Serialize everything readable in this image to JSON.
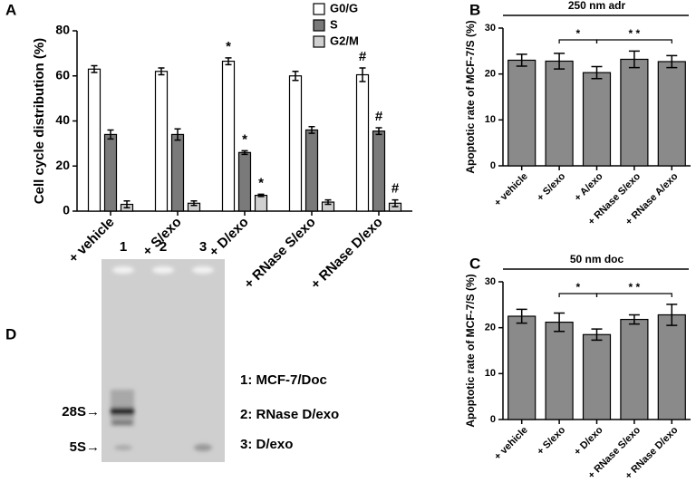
{
  "chart_data": [
    {
      "panel": "A",
      "type": "bar",
      "ylabel": "Cell cycle distribution (%)",
      "categories": [
        "+ vehicle",
        "+ S/exo",
        "+ D/exo",
        "+ RNase S/exo",
        "+ RNase D/exo"
      ],
      "series": [
        {
          "name": "G0/G",
          "color": "#ffffff",
          "values": [
            63,
            62,
            66.5,
            60,
            60.5
          ],
          "errors": [
            1.5,
            1.5,
            1.5,
            2,
            3
          ],
          "annotations": [
            null,
            null,
            "*",
            null,
            "#"
          ]
        },
        {
          "name": "S",
          "color": "#7a7a7a",
          "values": [
            34,
            34,
            26,
            36,
            35.5
          ],
          "errors": [
            2,
            2.5,
            0.8,
            1.5,
            1.5
          ],
          "annotations": [
            null,
            null,
            "*",
            null,
            "#"
          ]
        },
        {
          "name": "G2/M",
          "color": "#d0d0d0",
          "values": [
            3,
            3.5,
            7,
            4,
            3.5
          ],
          "errors": [
            1.5,
            1,
            0.5,
            1,
            1.5
          ],
          "annotations": [
            null,
            null,
            "*",
            null,
            "#"
          ]
        }
      ],
      "ylim": [
        0,
        80
      ],
      "yticks": [
        0,
        20,
        40,
        60,
        80
      ]
    },
    {
      "panel": "B",
      "type": "bar",
      "title": "250 nm adr",
      "ylabel": "Apoptotic rate of MCF-7/S (%)",
      "categories": [
        "+ vehicle",
        "+ S/exo",
        "+ A/exo",
        "+ RNase S/exo",
        "+ RNase A/exo"
      ],
      "values": [
        23,
        22.8,
        20.3,
        23.2,
        22.7
      ],
      "errors": [
        1.3,
        1.7,
        1.3,
        1.8,
        1.3
      ],
      "color": "#8a8a8a",
      "ylim": [
        0,
        30
      ],
      "yticks": [
        0,
        10,
        20,
        30
      ],
      "comparisons": [
        {
          "label": "*",
          "categories": [
            1,
            2
          ]
        },
        {
          "label": "* *",
          "categories": [
            2,
            4
          ]
        }
      ]
    },
    {
      "panel": "C",
      "type": "bar",
      "title": "50 nm doc",
      "ylabel": "Apoptotic rate of MCF-7/S (%)",
      "categories": [
        "+ vehicle",
        "+ S/exo",
        "+ D/exo",
        "+ RNase S/exo",
        "+ RNase D/exo"
      ],
      "values": [
        22.5,
        21.2,
        18.5,
        21.8,
        22.8
      ],
      "errors": [
        1.5,
        2,
        1.2,
        1,
        2.3
      ],
      "color": "#8a8a8a",
      "ylim": [
        0,
        30
      ],
      "yticks": [
        0,
        10,
        20,
        30
      ],
      "comparisons": [
        {
          "label": "*",
          "categories": [
            1,
            2
          ]
        },
        {
          "label": "* *",
          "categories": [
            2,
            4
          ]
        }
      ]
    }
  ],
  "gel": {
    "panel": "D",
    "lanes": [
      "1",
      "2",
      "3"
    ],
    "markers": [
      "28S→",
      "5S→"
    ],
    "legend": [
      "1: MCF-7/Doc",
      "2: RNase D/exo",
      "3: D/exo"
    ]
  }
}
